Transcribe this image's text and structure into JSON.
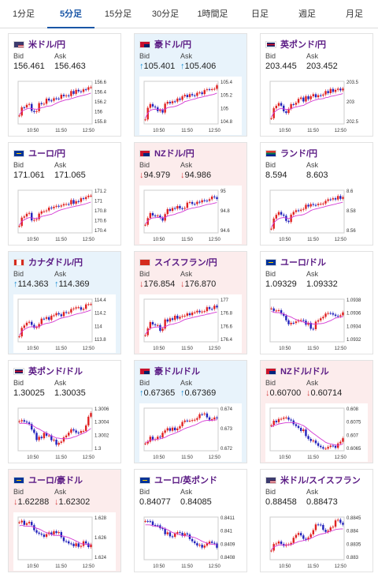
{
  "tabs": [
    {
      "label": "1分足"
    },
    {
      "label": "5分足"
    },
    {
      "label": "15分足"
    },
    {
      "label": "30分足"
    },
    {
      "label": "1時間足"
    },
    {
      "label": "日足"
    },
    {
      "label": "週足"
    },
    {
      "label": "月足"
    }
  ],
  "active_tab": "5分足",
  "labels": {
    "bid": "Bid",
    "ask": "Ask"
  },
  "colors": {
    "bull": "#e02020",
    "bear": "#2222bb",
    "ma": "#d43ad4",
    "up_arrow": "#1a8fd6",
    "down_arrow": "#d84545"
  },
  "pairs": [
    {
      "name": "米ドル/円",
      "flag": "us",
      "trend": "flat",
      "bid": "156.461",
      "ask": "156.463",
      "dir": "",
      "y_ticks": [
        "156.6",
        "156.4",
        "156.2",
        "156",
        "155.8"
      ],
      "x_ticks": [
        "10:50",
        "11:50",
        "12:50"
      ],
      "shape": "up"
    },
    {
      "name": "豪ドル/円",
      "flag": "au",
      "trend": "up",
      "bid": "105.401",
      "ask": "105.406",
      "dir": "↑",
      "y_ticks": [
        "105.4",
        "105.2",
        "105",
        "104.8"
      ],
      "x_ticks": [
        "10:50",
        "11:50",
        "12:50"
      ],
      "shape": "up"
    },
    {
      "name": "英ポンド/円",
      "flag": "gb",
      "trend": "flat",
      "bid": "203.445",
      "ask": "203.452",
      "dir": "",
      "y_ticks": [
        "203.5",
        "203",
        "202.5"
      ],
      "x_ticks": [
        "10:50",
        "11:50",
        "12:50"
      ],
      "shape": "up"
    },
    {
      "name": "ユーロ/円",
      "flag": "eu",
      "trend": "flat",
      "bid": "171.061",
      "ask": "171.065",
      "dir": "",
      "y_ticks": [
        "171.2",
        "171",
        "170.8",
        "170.6",
        "170.4"
      ],
      "x_ticks": [
        "10:50",
        "11:50",
        "12:50"
      ],
      "shape": "up"
    },
    {
      "name": "NZドル/円",
      "flag": "nz",
      "trend": "down",
      "bid": "94.979",
      "ask": "94.986",
      "dir": "↓",
      "y_ticks": [
        "95",
        "94.8",
        "94.6"
      ],
      "x_ticks": [
        "10:50",
        "11:50",
        "12:50"
      ],
      "shape": "up"
    },
    {
      "name": "ランド/円",
      "flag": "za",
      "trend": "flat",
      "bid": "8.594",
      "ask": "8.603",
      "dir": "",
      "y_ticks": [
        "8.6",
        "8.58",
        "8.56"
      ],
      "x_ticks": [
        "10:50",
        "11:50",
        "12:50"
      ],
      "shape": "up"
    },
    {
      "name": "カナダドル/円",
      "flag": "ca",
      "trend": "up",
      "bid": "114.363",
      "ask": "114.369",
      "dir": "↑",
      "y_ticks": [
        "114.4",
        "114.2",
        "114",
        "113.8"
      ],
      "x_ticks": [
        "10:50",
        "11:50",
        "12:50"
      ],
      "shape": "up"
    },
    {
      "name": "スイスフラン/円",
      "flag": "ch",
      "trend": "down",
      "bid": "176.854",
      "ask": "176.870",
      "dir": "↓",
      "y_ticks": [
        "177",
        "176.8",
        "176.6",
        "176.4"
      ],
      "x_ticks": [
        "10:50",
        "11:50",
        "12:50"
      ],
      "shape": "up"
    },
    {
      "name": "ユーロ/ドル",
      "flag": "eu",
      "trend": "flat",
      "bid": "1.09329",
      "ask": "1.09332",
      "dir": "",
      "y_ticks": [
        "1.0938",
        "1.0936",
        "1.0934",
        "1.0932"
      ],
      "x_ticks": [
        "10:50",
        "11:50",
        "12:50"
      ],
      "shape": "dip"
    },
    {
      "name": "英ポンド/ドル",
      "flag": "gb",
      "trend": "flat",
      "bid": "1.30025",
      "ask": "1.30035",
      "dir": "",
      "y_ticks": [
        "1.3006",
        "1.3004",
        "1.3002",
        "1.3"
      ],
      "x_ticks": [
        "10:50",
        "11:50",
        "12:50"
      ],
      "shape": "vee"
    },
    {
      "name": "豪ドル/ドル",
      "flag": "au",
      "trend": "up",
      "bid": "0.67365",
      "ask": "0.67369",
      "dir": "↑",
      "y_ticks": [
        "0.674",
        "0.673",
        "0.672"
      ],
      "x_ticks": [
        "10:50",
        "11:50",
        "12:50"
      ],
      "shape": "rise"
    },
    {
      "name": "NZドル/ドル",
      "flag": "nz",
      "trend": "down",
      "bid": "0.60700",
      "ask": "0.60714",
      "dir": "↓",
      "y_ticks": [
        "0.608",
        "0.6075",
        "0.607",
        "0.6065"
      ],
      "x_ticks": [
        "10:50",
        "11:50",
        "12:50"
      ],
      "shape": "wave"
    },
    {
      "name": "ユーロ/豪ドル",
      "flag": "eu",
      "trend": "down",
      "bid": "1.62288",
      "ask": "1.62302",
      "dir": "↓",
      "y_ticks": [
        "1.628",
        "1.626",
        "1.624"
      ],
      "x_ticks": [
        "10:50",
        "11:50",
        "12:50"
      ],
      "shape": "down"
    },
    {
      "name": "ユーロ/英ポンド",
      "flag": "eu",
      "trend": "flat",
      "bid": "0.84077",
      "ask": "0.84085",
      "dir": "",
      "y_ticks": [
        "0.8411",
        "0.841",
        "0.8409",
        "0.8408"
      ],
      "x_ticks": [
        "10:50",
        "11:50",
        "12:50"
      ],
      "shape": "down"
    },
    {
      "name": "米ドル/スイスフラン",
      "flag": "us",
      "trend": "flat",
      "bid": "0.88458",
      "ask": "0.88473",
      "dir": "",
      "y_ticks": [
        "0.8845",
        "0.884",
        "0.8835",
        "0.883"
      ],
      "x_ticks": [
        "10:50",
        "11:50",
        "12:50"
      ],
      "shape": "rise2"
    }
  ]
}
